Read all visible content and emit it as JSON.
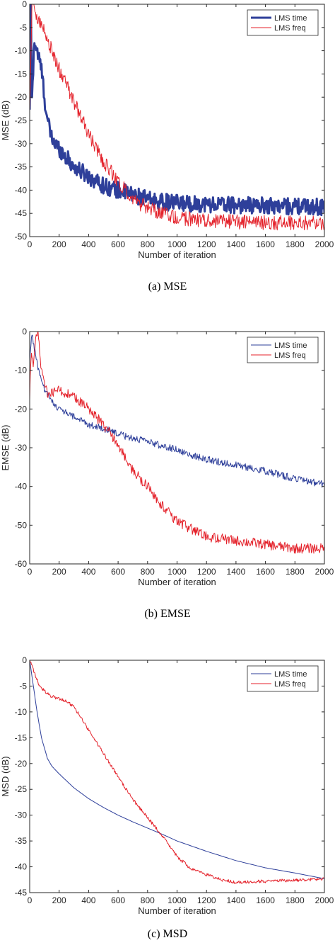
{
  "figures": [
    {
      "caption": "(a)  MSE",
      "chart_data": {
        "type": "line",
        "title": "",
        "xlabel": "Number of iteration",
        "ylabel": "MSE (dB)",
        "xlim": [
          0,
          2000
        ],
        "ylim": [
          -50,
          0
        ],
        "xticks": [
          0,
          200,
          400,
          600,
          800,
          1000,
          1200,
          1400,
          1600,
          1800,
          2000
        ],
        "yticks": [
          0,
          -5,
          -10,
          -15,
          -20,
          -25,
          -30,
          -35,
          -40,
          -45,
          -50
        ],
        "grid": false,
        "legend_position": "top-right",
        "series": [
          {
            "name": "LMS time",
            "color": "#2e3f9a",
            "stroke": 3,
            "x": [
              0,
              8,
              15,
              30,
              50,
              80,
              100,
              120,
              150,
              200,
              250,
              300,
              400,
              500,
              600,
              700,
              800,
              900,
              1000,
              1200,
              1400,
              1600,
              1800,
              2000
            ],
            "y": [
              -24,
              0,
              -22,
              -8,
              -10,
              -14,
              -20,
              -25,
              -29,
              -31,
              -33,
              -35,
              -37,
              -39,
              -40,
              -41,
              -42,
              -42.5,
              -42.8,
              -43,
              -43.2,
              -43.3,
              -43.5,
              -43.6
            ],
            "noise": 1.8
          },
          {
            "name": "LMS freq",
            "color": "#e4222b",
            "stroke": 1,
            "x": [
              0,
              15,
              30,
              60,
              100,
              150,
              200,
              300,
              400,
              500,
              600,
              700,
              800,
              900,
              1000,
              1200,
              1400,
              1600,
              1800,
              2000
            ],
            "y": [
              -24,
              0,
              -1,
              -3,
              -6,
              -10,
              -14,
              -21,
              -28,
              -34,
              -38,
              -42,
              -44,
              -45,
              -46,
              -46.5,
              -46.8,
              -47,
              -47,
              -47
            ],
            "noise": 1.6
          }
        ]
      }
    },
    {
      "caption": "(b)  EMSE",
      "chart_data": {
        "type": "line",
        "title": "",
        "xlabel": "Number of iteration",
        "ylabel": "EMSE (dB)",
        "xlim": [
          0,
          2000
        ],
        "ylim": [
          -60,
          0
        ],
        "xticks": [
          0,
          200,
          400,
          600,
          800,
          1000,
          1200,
          1400,
          1600,
          1800,
          2000
        ],
        "yticks": [
          0,
          -10,
          -20,
          -30,
          -40,
          -50,
          -60
        ],
        "grid": false,
        "legend_position": "top-right",
        "series": [
          {
            "name": "LMS time",
            "color": "#2e3f9a",
            "stroke": 1,
            "x": [
              0,
              15,
              30,
              60,
              100,
              150,
              200,
              300,
              400,
              500,
              600,
              700,
              800,
              900,
              1000,
              1100,
              1200,
              1400,
              1600,
              1800,
              2000
            ],
            "y": [
              -8,
              0,
              -4,
              -10,
              -15,
              -18,
              -20,
              -22,
              -24,
              -25,
              -26.5,
              -27.5,
              -28.5,
              -29.5,
              -30.5,
              -32,
              -33,
              -34.5,
              -36,
              -38,
              -39.5
            ],
            "noise": 0.9
          },
          {
            "name": "LMS freq",
            "color": "#e4222b",
            "stroke": 1,
            "x": [
              0,
              10,
              25,
              40,
              55,
              80,
              120,
              200,
              300,
              400,
              500,
              600,
              700,
              800,
              900,
              1000,
              1100,
              1200,
              1400,
              1600,
              1800,
              2000
            ],
            "y": [
              -18,
              -4,
              -10,
              -2,
              0,
              -10,
              -16,
              -15,
              -17,
              -20,
              -24,
              -29,
              -36,
              -40,
              -45,
              -49,
              -51,
              -53,
              -54,
              -55,
              -56,
              -56
            ],
            "noise": 1.3
          }
        ]
      }
    },
    {
      "caption": "(c)  MSD",
      "chart_data": {
        "type": "line",
        "title": "",
        "xlabel": "Number of iteration",
        "ylabel": "MSD (dB)",
        "xlim": [
          0,
          2000
        ],
        "ylim": [
          -45,
          0
        ],
        "xticks": [
          0,
          200,
          400,
          600,
          800,
          1000,
          1200,
          1400,
          1600,
          1800,
          2000
        ],
        "yticks": [
          0,
          -5,
          -10,
          -15,
          -20,
          -25,
          -30,
          -35,
          -40,
          -45
        ],
        "grid": false,
        "legend_position": "top-right",
        "series": [
          {
            "name": "LMS time",
            "color": "#2e3f9a",
            "stroke": 1,
            "x": [
              0,
              20,
              50,
              80,
              120,
              150,
              200,
              300,
              400,
              500,
              600,
              700,
              800,
              900,
              1000,
              1200,
              1400,
              1600,
              1800,
              2000
            ],
            "y": [
              0,
              -4,
              -10,
              -15,
              -19,
              -20.5,
              -22,
              -24.7,
              -26.8,
              -28.5,
              -30,
              -31.3,
              -32.5,
              -33.7,
              -35,
              -37,
              -38.8,
              -40.2,
              -41.2,
              -42.3
            ],
            "noise": 0
          },
          {
            "name": "LMS freq",
            "color": "#e4222b",
            "stroke": 1,
            "x": [
              0,
              20,
              40,
              60,
              100,
              150,
              200,
              250,
              300,
              400,
              500,
              600,
              700,
              800,
              900,
              1000,
              1100,
              1200,
              1300,
              1400,
              1600,
              1800,
              2000
            ],
            "y": [
              0,
              -1.5,
              -3,
              -4.5,
              -6,
              -7,
              -7.5,
              -8,
              -9,
              -13.5,
              -18,
              -22.5,
              -27,
              -30.5,
              -34,
              -38,
              -40.5,
              -41.5,
              -42.5,
              -43,
              -42.8,
              -42.6,
              -42.4
            ],
            "noise": 0.3
          }
        ]
      }
    }
  ]
}
